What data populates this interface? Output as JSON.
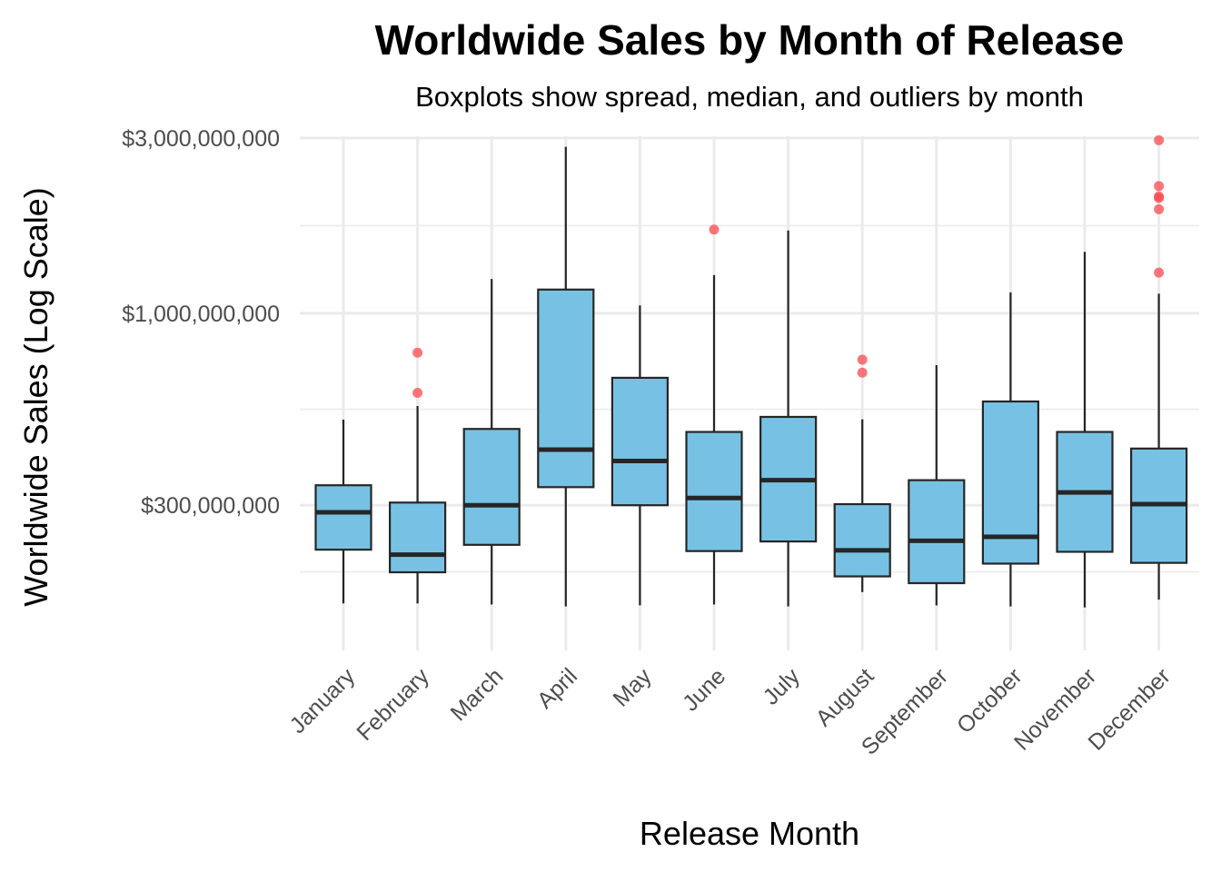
{
  "chart_data": {
    "type": "boxplot",
    "title": "Worldwide Sales by Month of Release",
    "subtitle": "Boxplots show spread, median, and outliers by month",
    "xlabel": "Release Month",
    "ylabel": "Worldwide Sales (Log Scale)",
    "y_scale": "log",
    "ylim": [
      130000000,
      3400000000
    ],
    "y_ticks": [
      300000000,
      1000000000,
      3000000000
    ],
    "y_tick_labels": [
      "$300,000,000",
      "$1,000,000,000",
      "$3,000,000,000"
    ],
    "grid": true,
    "legend": "none",
    "colors": {
      "box_fill": "#77c2e4",
      "box_stroke": "#262626",
      "outlier": "#f8484d",
      "grid": "#ebebeb"
    },
    "categories": [
      "January",
      "February",
      "March",
      "April",
      "May",
      "June",
      "July",
      "August",
      "September",
      "October",
      "November",
      "December"
    ],
    "boxes": [
      {
        "month": "January",
        "whisker_low": 162000000,
        "q1": 227000000,
        "median": 287000000,
        "q3": 340000000,
        "whisker_high": 513000000,
        "outliers": []
      },
      {
        "month": "February",
        "whisker_low": 162000000,
        "q1": 197000000,
        "median": 220000000,
        "q3": 305000000,
        "whisker_high": 559000000,
        "outliers": [
          607000000,
          781000000
        ]
      },
      {
        "month": "March",
        "whisker_low": 161000000,
        "q1": 234000000,
        "median": 300000000,
        "q3": 484000000,
        "whisker_high": 1240000000,
        "outliers": []
      },
      {
        "month": "April",
        "whisker_low": 159000000,
        "q1": 336000000,
        "median": 425000000,
        "q3": 1160000000,
        "whisker_high": 2840000000,
        "outliers": []
      },
      {
        "month": "May",
        "whisker_low": 160000000,
        "q1": 300000000,
        "median": 396000000,
        "q3": 667000000,
        "whisker_high": 1050000000,
        "outliers": []
      },
      {
        "month": "June",
        "whisker_low": 161000000,
        "q1": 225000000,
        "median": 314000000,
        "q3": 475000000,
        "whisker_high": 1270000000,
        "outliers": [
          1690000000
        ]
      },
      {
        "month": "July",
        "whisker_low": 159000000,
        "q1": 239000000,
        "median": 351000000,
        "q3": 522000000,
        "whisker_high": 1680000000,
        "outliers": []
      },
      {
        "month": "August",
        "whisker_low": 174000000,
        "q1": 192000000,
        "median": 226000000,
        "q3": 302000000,
        "whisker_high": 514000000,
        "outliers": [
          689000000,
          747000000
        ]
      },
      {
        "month": "September",
        "whisker_low": 160000000,
        "q1": 184000000,
        "median": 240000000,
        "q3": 351000000,
        "whisker_high": 722000000,
        "outliers": []
      },
      {
        "month": "October",
        "whisker_low": 159000000,
        "q1": 208000000,
        "median": 246000000,
        "q3": 575000000,
        "whisker_high": 1140000000,
        "outliers": []
      },
      {
        "month": "November",
        "whisker_low": 158000000,
        "q1": 224000000,
        "median": 325000000,
        "q3": 475000000,
        "whisker_high": 1470000000,
        "outliers": []
      },
      {
        "month": "December",
        "whisker_low": 166000000,
        "q1": 209000000,
        "median": 302000000,
        "q3": 428000000,
        "whisker_high": 1130000000,
        "outliers": [
          1290000000,
          1920000000,
          2060000000,
          2080000000,
          2220000000,
          2960000000
        ]
      }
    ]
  }
}
